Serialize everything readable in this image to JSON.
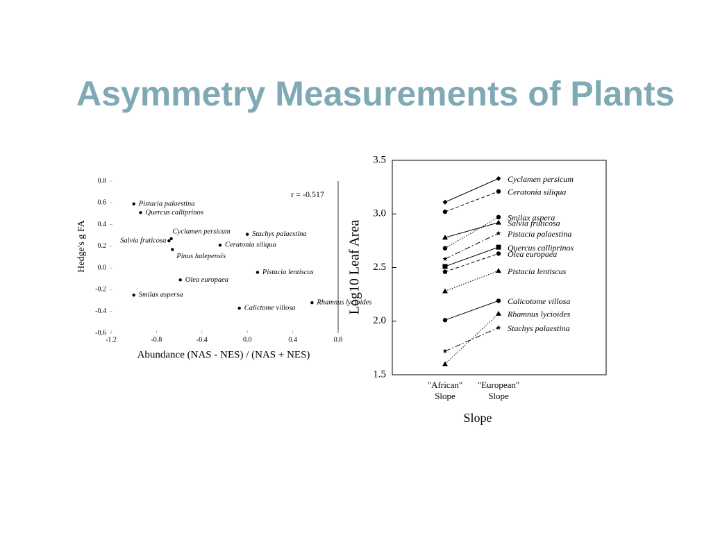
{
  "title": "Asymmetry Measurements of Plants",
  "chart_data": [
    {
      "type": "scatter",
      "ylabel": "Hedge's g FA",
      "xlabel": "Abundance (NAS - NES) / (NAS + NES)",
      "annotation": "r = -0.517",
      "labels": [
        "Pistacia palaestina",
        "Quercus calliprinos",
        "Cyclamen persicum",
        "Salvia fruticosa",
        "Pinus halepensis",
        "Stachys palaestina",
        "Ceratonia siliqua",
        "Pistacia lentiscus",
        "Olea europaea",
        "Smilax aspersa",
        "Calictome villosa",
        "Rhamnus lycioides"
      ],
      "x": [
        -1.0,
        -0.94,
        -0.67,
        -0.69,
        -0.66,
        0.0,
        -0.24,
        0.09,
        -0.59,
        -1.0,
        -0.07,
        0.57
      ],
      "y": [
        0.59,
        0.51,
        0.27,
        0.25,
        0.17,
        0.31,
        0.21,
        -0.04,
        -0.11,
        -0.25,
        -0.37,
        -0.32
      ],
      "color": "#000000",
      "xlim": [
        -1.2,
        0.8
      ],
      "ylim": [
        -0.6,
        0.8
      ],
      "xticks": [
        -1.2,
        -0.8,
        -0.4,
        {
          "value": 0,
          "label": "0.0"
        },
        0.4,
        0.8
      ],
      "yticks": [
        -0.6,
        -0.4,
        -0.2,
        {
          "value": 0,
          "label": "0.0"
        },
        0.2,
        0.4,
        0.6,
        0.8
      ]
    },
    {
      "type": "line",
      "ylabel": "Log10 Leaf Area",
      "xlabel": "Slope",
      "categories": [
        "\"African\" Slope",
        "\"European\" Slope"
      ],
      "ylim": [
        1.5,
        3.5
      ],
      "yticks": [
        1.5,
        {
          "value": 2,
          "label": "2.0"
        },
        2.5,
        {
          "value": 3,
          "label": "3.0"
        },
        3.5
      ],
      "series": [
        {
          "name": "Cyclamen persicum",
          "color": "#000000",
          "marker": "diamond",
          "dash": "solid",
          "values": [
            3.11,
            3.33
          ]
        },
        {
          "name": "Ceratonia siliqua",
          "color": "#000000",
          "marker": "circle",
          "dash": "dashed",
          "values": [
            3.02,
            3.21
          ]
        },
        {
          "name": "Smilax aspera",
          "color": "#000000",
          "marker": "circle",
          "dash": "dotted",
          "values": [
            2.68,
            2.97
          ]
        },
        {
          "name": "Salvia fruticosa",
          "color": "#000000",
          "marker": "triangle",
          "dash": "solid",
          "values": [
            2.78,
            2.92
          ]
        },
        {
          "name": "Pistacia palaestina",
          "color": "#000000",
          "marker": "star",
          "dash": "dashdot",
          "values": [
            2.58,
            2.82
          ]
        },
        {
          "name": "Quercus calliprinos",
          "color": "#000000",
          "marker": "square",
          "dash": "solid",
          "values": [
            2.51,
            2.69
          ]
        },
        {
          "name": "Olea europaea",
          "color": "#000000",
          "marker": "circle",
          "dash": "dashed",
          "values": [
            2.46,
            2.63
          ]
        },
        {
          "name": "Pistacia lentiscus",
          "color": "#000000",
          "marker": "triangle",
          "dash": "dotted",
          "values": [
            2.28,
            2.47
          ]
        },
        {
          "name": "Calicotome villosa",
          "color": "#000000",
          "marker": "circle",
          "dash": "solid",
          "values": [
            2.01,
            2.19
          ]
        },
        {
          "name": "Rhamnus lycioides",
          "color": "#000000",
          "marker": "triangle",
          "dash": "dotted",
          "values": [
            1.6,
            2.07
          ]
        },
        {
          "name": "Stachys palaestina",
          "color": "#000000",
          "marker": "star",
          "dash": "dashdot",
          "values": [
            1.72,
            1.94
          ]
        }
      ]
    }
  ]
}
